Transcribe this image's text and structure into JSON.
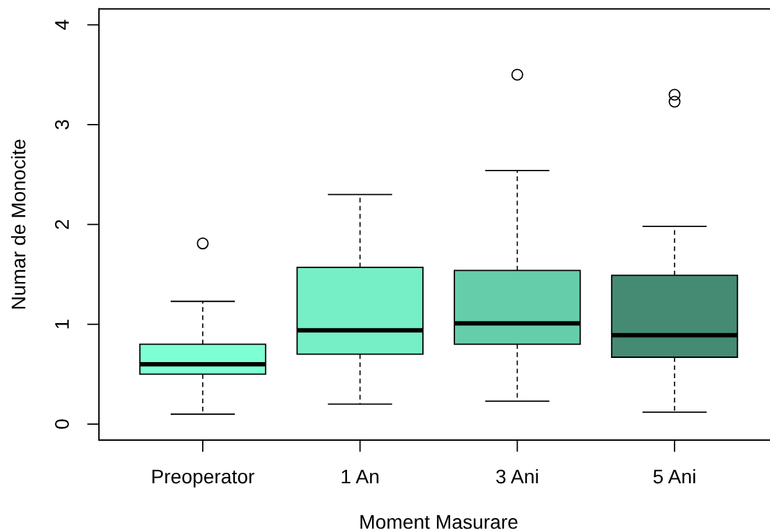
{
  "chart_data": {
    "type": "box",
    "xlabel": "Moment Masurare",
    "ylabel": "Numar de Monocite",
    "categories": [
      "Preoperator",
      "1 An",
      "3 Ani",
      "5 Ani"
    ],
    "colors": [
      "#7fffd4",
      "#76eec6",
      "#66cdaa",
      "#458b74"
    ],
    "boxes": [
      {
        "low": 0.1,
        "q1": 0.5,
        "median": 0.6,
        "q3": 0.8,
        "high": 1.23,
        "outliers": [
          1.81
        ]
      },
      {
        "low": 0.2,
        "q1": 0.7,
        "median": 0.94,
        "q3": 1.57,
        "high": 2.3
      },
      {
        "low": 0.23,
        "q1": 0.8,
        "median": 1.01,
        "q3": 1.54,
        "high": 2.54,
        "outliers": [
          3.5
        ]
      },
      {
        "low": 0.12,
        "q1": 0.67,
        "median": 0.89,
        "q3": 1.49,
        "high": 1.98,
        "outliers": [
          3.3,
          3.23
        ]
      }
    ],
    "ylim": [
      -0.16,
      4.16
    ],
    "yticks": [
      0,
      1,
      2,
      3,
      4
    ],
    "marker": "circle",
    "line_style": "dashed",
    "grid": false
  }
}
